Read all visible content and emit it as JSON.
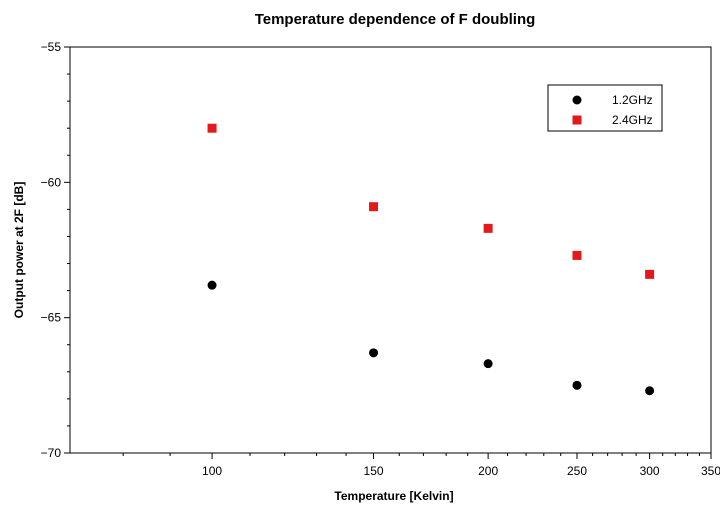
{
  "chart_data": {
    "type": "scatter",
    "title": "Temperature dependence of F doubling",
    "xlabel": "Temperature [Kelvin]",
    "ylabel": "Output power at 2F [dB]",
    "x_scale": "log",
    "xlim": [
      70,
      350
    ],
    "ylim": [
      -70,
      -55
    ],
    "x_ticks": [
      100,
      150,
      200,
      250,
      300,
      350
    ],
    "y_ticks": [
      -55,
      -60,
      -65,
      -70
    ],
    "grid": false,
    "legend_position": "top-right",
    "series": [
      {
        "name": "1.2GHz",
        "marker": "circle",
        "color": "#000000",
        "x": [
          100,
          150,
          200,
          250,
          300
        ],
        "y": [
          -63.8,
          -66.3,
          -66.7,
          -67.5,
          -67.7
        ]
      },
      {
        "name": "2.4GHz",
        "marker": "square",
        "color": "#e31a1c",
        "x": [
          100,
          150,
          200,
          250,
          300
        ],
        "y": [
          -58.0,
          -60.9,
          -61.7,
          -62.7,
          -63.4
        ]
      }
    ]
  }
}
